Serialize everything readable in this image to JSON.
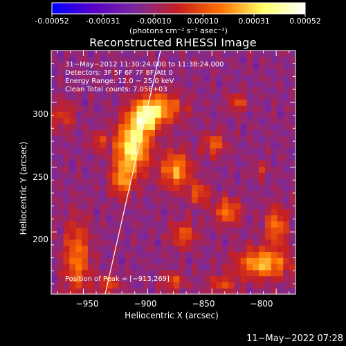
{
  "colorbar": {
    "ticks": [
      "-0.00052",
      "-0.00031",
      "-0.00010",
      "0.00010",
      "0.00031",
      "0.00052"
    ],
    "tick_values": [
      -0.00052,
      -0.00031,
      -0.0001,
      0.0001,
      0.00031,
      0.00052
    ],
    "units": "(photons cm⁻² s⁻¹ asec⁻²)",
    "range": [
      -0.00052,
      0.00052
    ],
    "colors": [
      "#0000ff",
      "#5a00c8",
      "#7b2a9a",
      "#c82020",
      "#ff7000",
      "#ffff66",
      "#ffffff"
    ]
  },
  "chart_data": {
    "type": "heatmap",
    "title": "Reconstructed RHESSI Image",
    "xlabel": "Heliocentric X (arcsec)",
    "ylabel": "Heliocentric Y (arcsec)",
    "xlim": [
      -975,
      -785
    ],
    "ylim": [
      152,
      340
    ],
    "xticks": [
      -950,
      -900,
      -850,
      -800
    ],
    "xtick_labels": [
      "−950",
      "−900",
      "−850",
      "−800"
    ],
    "yticks": [
      200,
      250,
      300
    ],
    "ytick_labels": [
      "200",
      "250",
      "300"
    ],
    "annotations": [
      "31−May−2012 11:30:24.000 to 11:38:24.000",
      "Detectors: 3F 5F 6F 7F 8F  Att 0",
      "Energy Range: 12.0 − 25.0 keV",
      "Clean    Total counts: 7.05E+03"
    ],
    "peak_label": "Position of Peak = [−913,269]",
    "limb_line": {
      "x": [
        -933,
        -890
      ],
      "y": [
        152,
        340
      ]
    },
    "sources": [
      {
        "x": -912,
        "y": 266,
        "sx": 9,
        "sy": 14,
        "amp": 0.00052
      },
      {
        "x": -902,
        "y": 288,
        "sx": 8,
        "sy": 9,
        "amp": 0.0004
      },
      {
        "x": -890,
        "y": 296,
        "sx": 12,
        "sy": 8,
        "amp": 0.00034
      },
      {
        "x": -920,
        "y": 240,
        "sx": 6,
        "sy": 9,
        "amp": 0.0003
      },
      {
        "x": -878,
        "y": 248,
        "sx": 8,
        "sy": 10,
        "amp": 0.00036
      },
      {
        "x": -860,
        "y": 230,
        "sx": 5,
        "sy": 6,
        "amp": 0.00026
      },
      {
        "x": -848,
        "y": 268,
        "sx": 6,
        "sy": 6,
        "amp": 0.00026
      },
      {
        "x": -838,
        "y": 216,
        "sx": 7,
        "sy": 7,
        "amp": 0.0003
      },
      {
        "x": -872,
        "y": 198,
        "sx": 7,
        "sy": 7,
        "amp": 0.00024
      },
      {
        "x": -810,
        "y": 176,
        "sx": 14,
        "sy": 8,
        "amp": 0.0004
      },
      {
        "x": -800,
        "y": 205,
        "sx": 6,
        "sy": 10,
        "amp": 0.0003
      },
      {
        "x": -955,
        "y": 180,
        "sx": 7,
        "sy": 20,
        "amp": 0.0003
      },
      {
        "x": -965,
        "y": 290,
        "sx": 6,
        "sy": 8,
        "amp": 0.00018
      },
      {
        "x": -938,
        "y": 270,
        "sx": 5,
        "sy": 5,
        "amp": 0.00018
      },
      {
        "x": -930,
        "y": 160,
        "sx": 6,
        "sy": 5,
        "amp": 0.00022
      },
      {
        "x": -880,
        "y": 162,
        "sx": 6,
        "sy": 5,
        "amp": 0.00022
      },
      {
        "x": -842,
        "y": 160,
        "sx": 8,
        "sy": 5,
        "amp": 0.0002
      },
      {
        "x": -830,
        "y": 300,
        "sx": 5,
        "sy": 5,
        "amp": 0.00022
      },
      {
        "x": -812,
        "y": 248,
        "sx": 4,
        "sy": 4,
        "amp": 0.00016
      }
    ]
  },
  "footer": {
    "timestamp": "11−May−2022 07:28"
  }
}
